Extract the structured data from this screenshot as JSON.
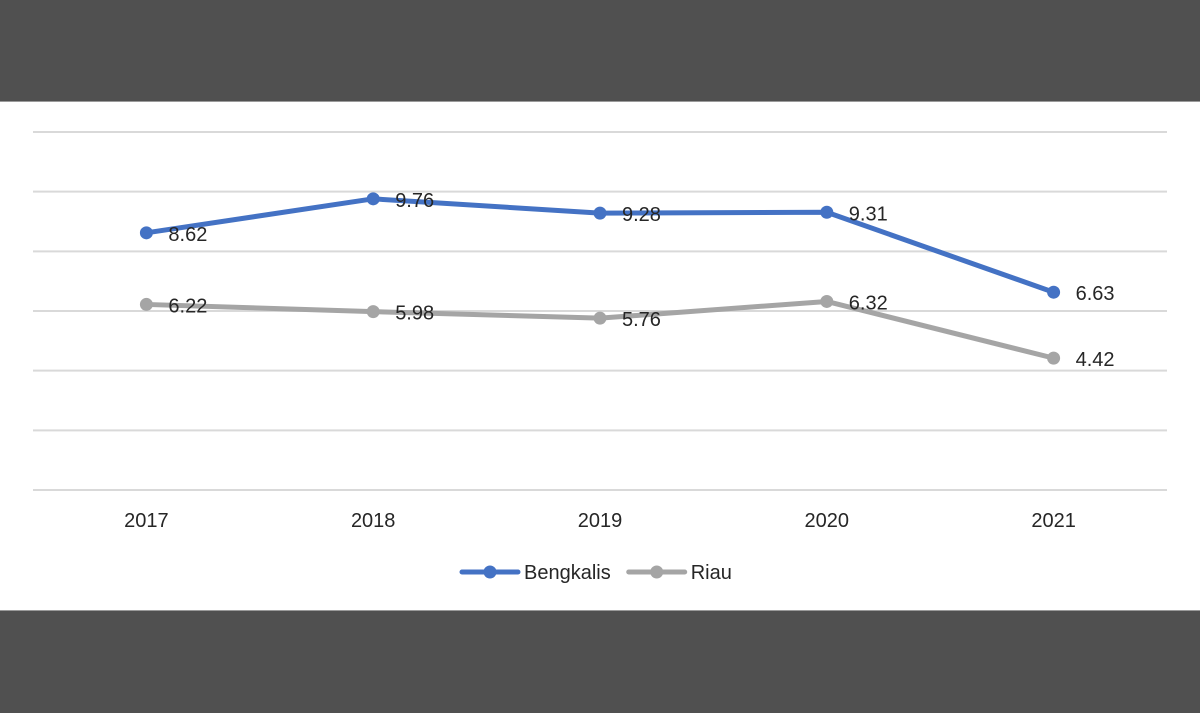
{
  "chart_data": {
    "type": "line",
    "title": "",
    "xlabel": "",
    "ylabel": "",
    "categories": [
      "2017",
      "2018",
      "2019",
      "2020",
      "2021"
    ],
    "ylim": [
      0,
      12
    ],
    "grid": true,
    "legend_position": "bottom",
    "series": [
      {
        "name": "Bengkalis",
        "color": "#4472c4",
        "values": [
          8.62,
          9.76,
          9.28,
          9.31,
          6.63
        ],
        "labels": [
          "8.62",
          "9.76",
          "9.28",
          "9.31",
          "6.63"
        ]
      },
      {
        "name": "Riau",
        "color": "#a5a5a5",
        "values": [
          6.22,
          5.98,
          5.76,
          6.32,
          4.42
        ],
        "labels": [
          "6.22",
          "5.98",
          "5.76",
          "6.32",
          "4.42"
        ]
      }
    ]
  }
}
